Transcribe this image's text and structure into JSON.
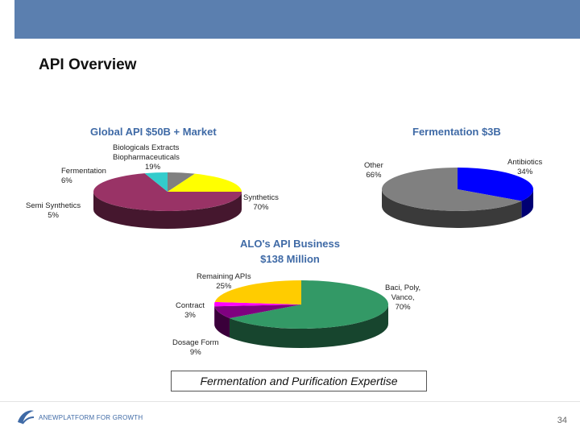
{
  "header": {
    "title": "API Overview"
  },
  "chart_data": [
    {
      "type": "pie",
      "title": "Global API $50B + Market",
      "slices": [
        {
          "name": "Synthetics",
          "value": 70,
          "label": "70%",
          "color": "#993366"
        },
        {
          "name": "Semi Synthetics",
          "value": 5,
          "label": "5%",
          "color": "#33cccc"
        },
        {
          "name": "Fermentation",
          "value": 6,
          "label": "6%",
          "color": "#808080"
        },
        {
          "name": "Biologicals Extracts Biopharmaceuticals",
          "value": 19,
          "label": "19%",
          "color": "#ffff00"
        }
      ]
    },
    {
      "type": "pie",
      "title": "Fermentation $3B",
      "slices": [
        {
          "name": "Antibiotics",
          "value": 34,
          "label": "34%",
          "color": "#0000ff"
        },
        {
          "name": "Other",
          "value": 66,
          "label": "66%",
          "color": "#808080"
        }
      ]
    },
    {
      "type": "pie",
      "title": "ALO's API Business $138 Million",
      "title_lines": [
        "ALO's API Business",
        "$138 Million"
      ],
      "slices": [
        {
          "name": "Baci, Poly, Vanco,",
          "value": 70,
          "label": "70%",
          "color": "#339966"
        },
        {
          "name": "Dosage Form",
          "value": 9,
          "label": "9%",
          "color": "#800080"
        },
        {
          "name": "Contract",
          "value": 3,
          "label": "3%",
          "color": "#ff00ff"
        },
        {
          "name": "Remaining APIs",
          "value": 25,
          "label": "25%",
          "color": "#ffcc00"
        }
      ]
    }
  ],
  "labels": {
    "global": {
      "biologicals": {
        "name_lines": [
          "Biologicals Extracts",
          "Biopharmaceuticals"
        ],
        "pct": "19%"
      },
      "fermentation": {
        "name": "Fermentation",
        "pct": "6%"
      },
      "semi": {
        "name": "Semi Synthetics",
        "pct": "5%"
      },
      "synthetics": {
        "name": "Synthetics",
        "pct": "70%"
      }
    },
    "ferm": {
      "other": {
        "name": "Other",
        "pct": "66%"
      },
      "antibiotics": {
        "name": "Antibiotics",
        "pct": "34%"
      }
    },
    "alo": {
      "remaining": {
        "name": "Remaining APIs",
        "pct": "25%"
      },
      "contract": {
        "name": "Contract",
        "pct": "3%"
      },
      "dosage": {
        "name": "Dosage Form",
        "pct": "9%"
      },
      "baci": {
        "name_lines": [
          "Baci, Poly,",
          "Vanco,"
        ],
        "pct": "70%"
      }
    }
  },
  "banner": {
    "text": "Fermentation and Purification Expertise"
  },
  "footer": {
    "tagline": "ANEWPLATFORM FOR GROWTH",
    "page_number": "34",
    "logo_icon": "swoosh-logo-icon"
  },
  "colors": {
    "header_bar": "#5b7faf",
    "chart_title": "#3f6aa6"
  }
}
